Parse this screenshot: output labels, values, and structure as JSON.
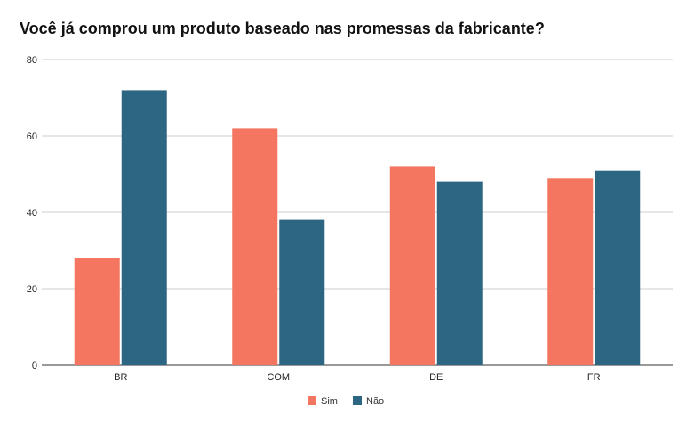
{
  "chart_data": {
    "type": "bar",
    "title": "Você já comprou um produto baseado nas promessas da fabricante?",
    "categories": [
      "BR",
      "COM",
      "DE",
      "FR"
    ],
    "series": [
      {
        "name": "Sim",
        "values": [
          28,
          62,
          52,
          49
        ],
        "color": "#F47661"
      },
      {
        "name": "Não",
        "values": [
          72,
          38,
          48,
          51
        ],
        "color": "#2D6683"
      }
    ],
    "ylim": [
      0,
      80
    ],
    "yticks": [
      "0",
      "20",
      "40",
      "60",
      "80"
    ],
    "grid": true,
    "legend": "bottom",
    "xlabel": "",
    "ylabel": ""
  }
}
